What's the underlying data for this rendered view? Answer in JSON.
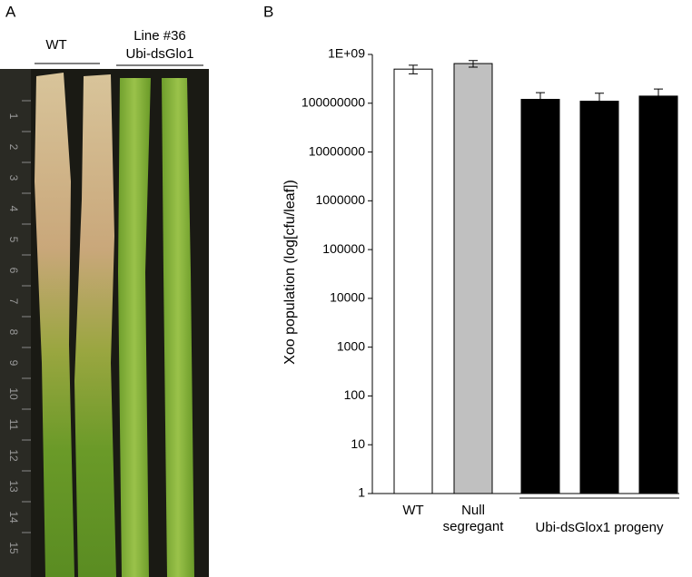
{
  "panel_a": {
    "label": "A",
    "groups": [
      "WT",
      "Line #36",
      "Ubi-dsGlo1"
    ],
    "ruler_ticks": [
      1,
      2,
      3,
      4,
      5,
      6,
      7,
      8,
      9,
      10,
      11,
      12,
      13,
      14,
      15
    ]
  },
  "chart_data": {
    "type": "bar",
    "panel_label": "B",
    "y_label": "Xoo population (log[cfu/leaf])",
    "categories": [
      "WT",
      "Null segregant",
      null,
      null,
      null
    ],
    "group_label": "Ubi-dsGlox1 progeny",
    "values": [
      500000000,
      650000000,
      120000000,
      110000000,
      140000000
    ],
    "errors": [
      100000000,
      100000000,
      45000000,
      50000000,
      55000000
    ],
    "colors": [
      "#ffffff",
      "#c0c0c0",
      "#000000",
      "#000000",
      "#000000"
    ],
    "log_scale": true,
    "ylim": [
      1,
      1000000000
    ],
    "yticks": [
      1,
      10,
      100,
      1000,
      10000,
      100000,
      1000000,
      10000000,
      100000000,
      {
        "value": 1000000000,
        "label": "1E+09"
      }
    ]
  }
}
